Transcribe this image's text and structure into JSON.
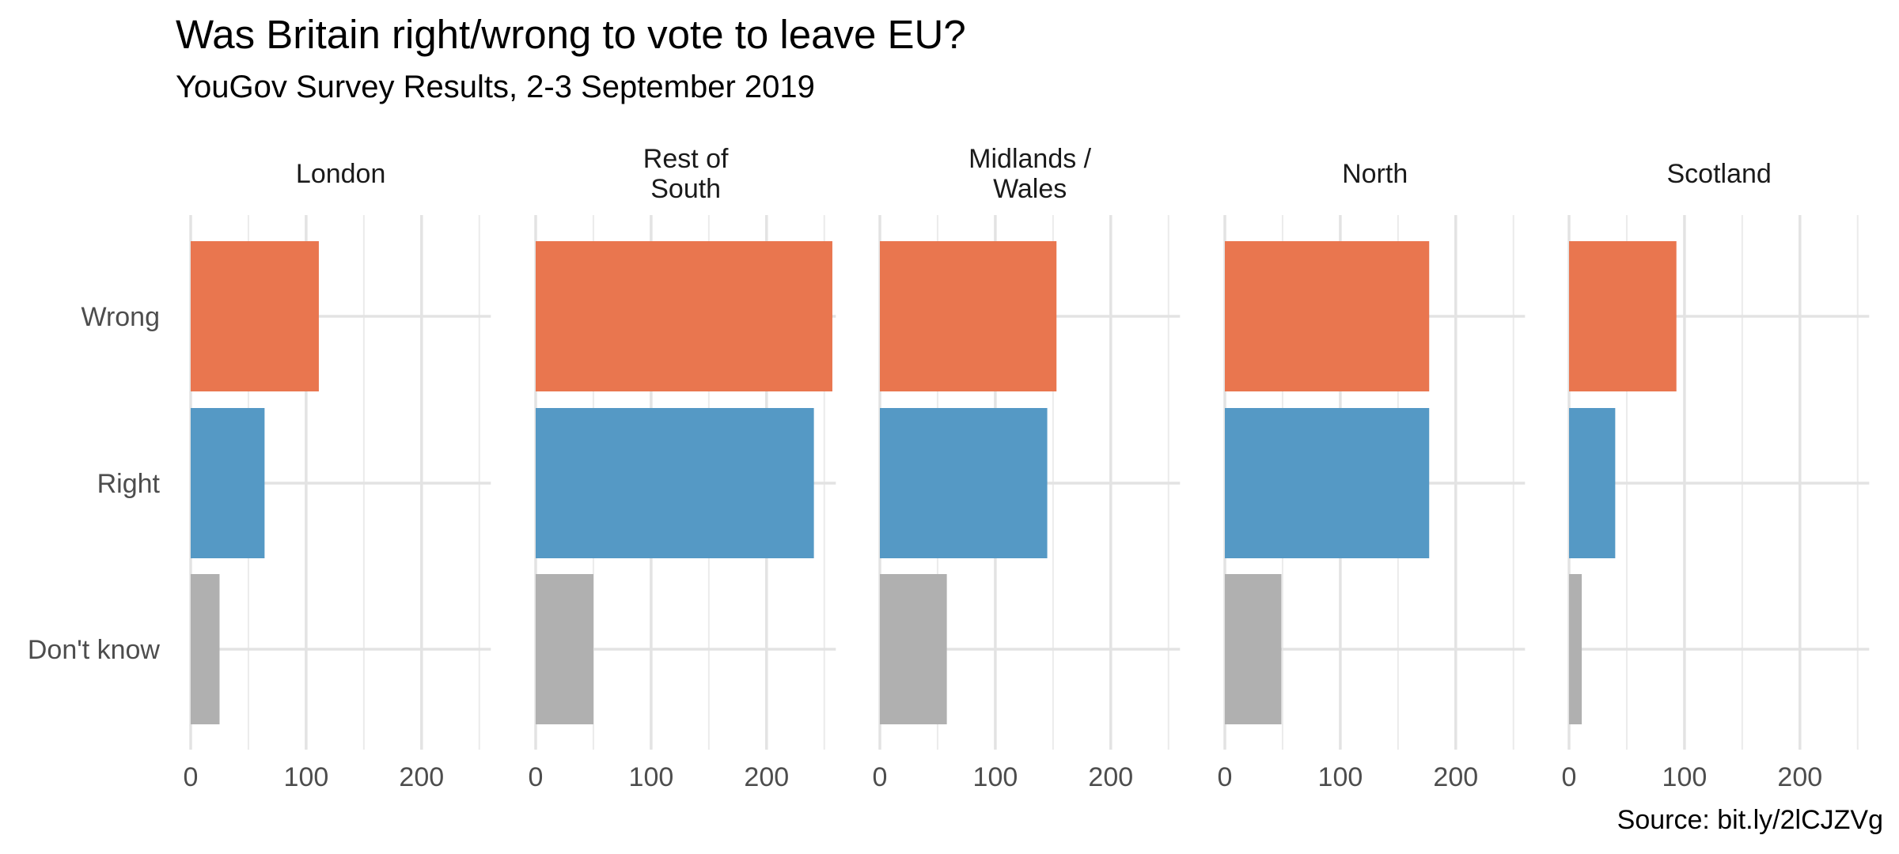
{
  "chart_data": {
    "type": "bar",
    "orientation": "horizontal",
    "title": "Was Britain right/wrong to vote to leave EU?",
    "subtitle": "YouGov Survey Results, 2-3 September 2019",
    "caption": "Source: bit.ly/2lCJZVg",
    "categories": [
      "Wrong",
      "Right",
      "Don't know"
    ],
    "xlim": [
      0,
      260
    ],
    "x_ticks": [
      0,
      100,
      200
    ],
    "grid": true,
    "legend": "none",
    "colors": {
      "Wrong": "#e9764f",
      "Right": "#5599c5",
      "Don't know": "#b0b0b0"
    },
    "panels": [
      {
        "name": [
          "London"
        ],
        "values": [
          111,
          64,
          25
        ]
      },
      {
        "name": [
          "Rest of",
          "South"
        ],
        "values": [
          257,
          241,
          50
        ]
      },
      {
        "name": [
          "Midlands /",
          "Wales"
        ],
        "values": [
          153,
          145,
          58
        ]
      },
      {
        "name": [
          "North"
        ],
        "values": [
          177,
          177,
          49
        ]
      },
      {
        "name": [
          "Scotland"
        ],
        "values": [
          93,
          40,
          11
        ]
      }
    ]
  }
}
